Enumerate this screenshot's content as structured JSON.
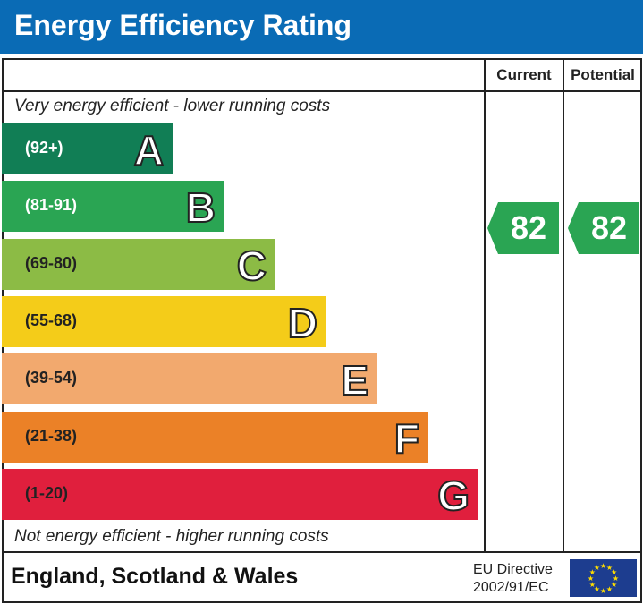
{
  "title": "Energy Efficiency Rating",
  "columns": {
    "current": "Current",
    "potential": "Potential"
  },
  "top_note": "Very energy efficient - lower running costs",
  "bottom_note": "Not energy efficient - higher running costs",
  "footer": {
    "country": "England, Scotland & Wales",
    "directive_line1": "EU Directive",
    "directive_line2": "2002/91/EC"
  },
  "chart_data": {
    "type": "bar",
    "bands": [
      {
        "letter": "A",
        "range": "(92+)",
        "color": "#117e55",
        "text_color": "#ffffff"
      },
      {
        "letter": "B",
        "range": "(81-91)",
        "color": "#2aa553",
        "text_color": "#ffffff"
      },
      {
        "letter": "C",
        "range": "(69-80)",
        "color": "#8cbb45",
        "text_color": "#222222"
      },
      {
        "letter": "D",
        "range": "(55-68)",
        "color": "#f4cc19",
        "text_color": "#222222"
      },
      {
        "letter": "E",
        "range": "(39-54)",
        "color": "#f2a96e",
        "text_color": "#222222"
      },
      {
        "letter": "F",
        "range": "(21-38)",
        "color": "#eb8127",
        "text_color": "#222222"
      },
      {
        "letter": "G",
        "range": "(1-20)",
        "color": "#e01f3d",
        "text_color": "#222222"
      }
    ],
    "current": {
      "value": 82,
      "band": "B",
      "color": "#2aa553"
    },
    "potential": {
      "value": 82,
      "band": "B",
      "color": "#2aa553"
    }
  }
}
